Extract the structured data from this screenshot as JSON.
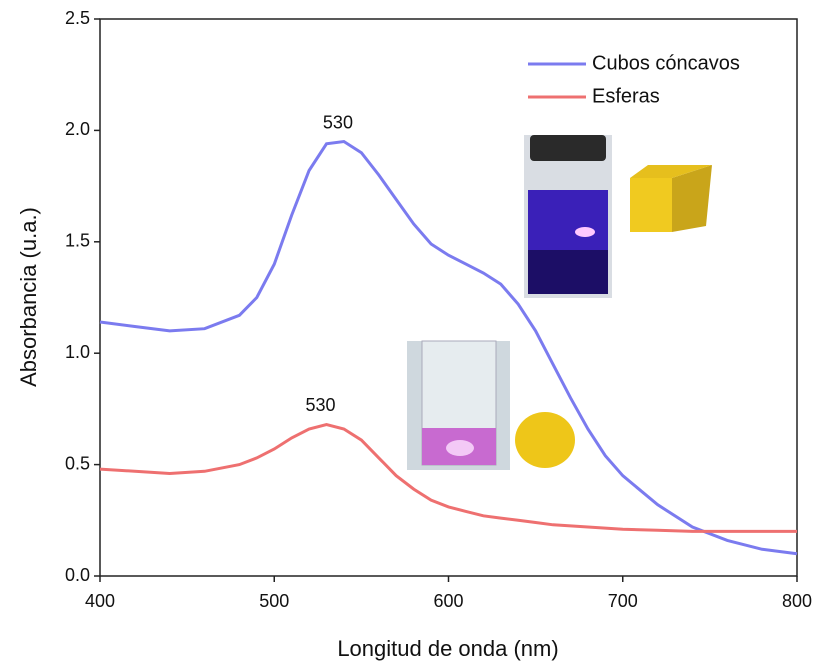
{
  "chart_data": {
    "type": "line",
    "x_label": "Longitud de onda (nm)",
    "y_label": "Absorbancia (u.a.)",
    "x": [
      400,
      420,
      440,
      460,
      480,
      490,
      500,
      510,
      520,
      530,
      540,
      550,
      560,
      570,
      580,
      590,
      600,
      610,
      620,
      630,
      640,
      650,
      660,
      670,
      680,
      690,
      700,
      720,
      740,
      760,
      780,
      800
    ],
    "series": [
      {
        "name": "Cubos cóncavos",
        "color": "#7b7bef",
        "values": [
          1.14,
          1.12,
          1.1,
          1.11,
          1.17,
          1.25,
          1.4,
          1.62,
          1.82,
          1.94,
          1.95,
          1.9,
          1.8,
          1.69,
          1.58,
          1.49,
          1.44,
          1.4,
          1.36,
          1.31,
          1.22,
          1.1,
          0.95,
          0.8,
          0.66,
          0.54,
          0.45,
          0.32,
          0.22,
          0.16,
          0.12,
          0.1
        ]
      },
      {
        "name": "Esferas",
        "color": "#ee7070",
        "values": [
          0.48,
          0.47,
          0.46,
          0.47,
          0.5,
          0.53,
          0.57,
          0.62,
          0.66,
          0.68,
          0.66,
          0.61,
          0.53,
          0.45,
          0.39,
          0.34,
          0.31,
          0.29,
          0.27,
          0.26,
          0.25,
          0.24,
          0.23,
          0.225,
          0.22,
          0.215,
          0.21,
          0.205,
          0.2,
          0.2,
          0.2,
          0.2
        ]
      }
    ],
    "annotations": [
      "530",
      "530"
    ],
    "xlim": [
      400,
      800
    ],
    "xticks": [
      400,
      500,
      600,
      700,
      800
    ],
    "ylim": [
      0,
      2.5
    ],
    "yticks": [
      {
        "value": 0,
        "label": "0.0"
      },
      0.5,
      {
        "value": 1,
        "label": "1.0"
      },
      1.5,
      {
        "value": 2,
        "label": "2.0"
      },
      2.5
    ],
    "legend": "upper-right",
    "grid": false
  }
}
